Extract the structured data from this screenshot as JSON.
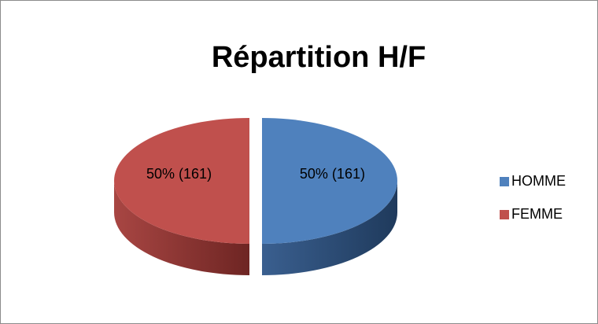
{
  "chart_data": {
    "type": "pie3d",
    "title": "Répartition H/F",
    "categories": [
      "HOMME",
      "FEMME"
    ],
    "values": [
      50,
      50
    ],
    "value_labels": [
      "50% (161)",
      "50% (161)"
    ],
    "colors": [
      "#4f81bd",
      "#c0504d"
    ],
    "legend": "right"
  }
}
